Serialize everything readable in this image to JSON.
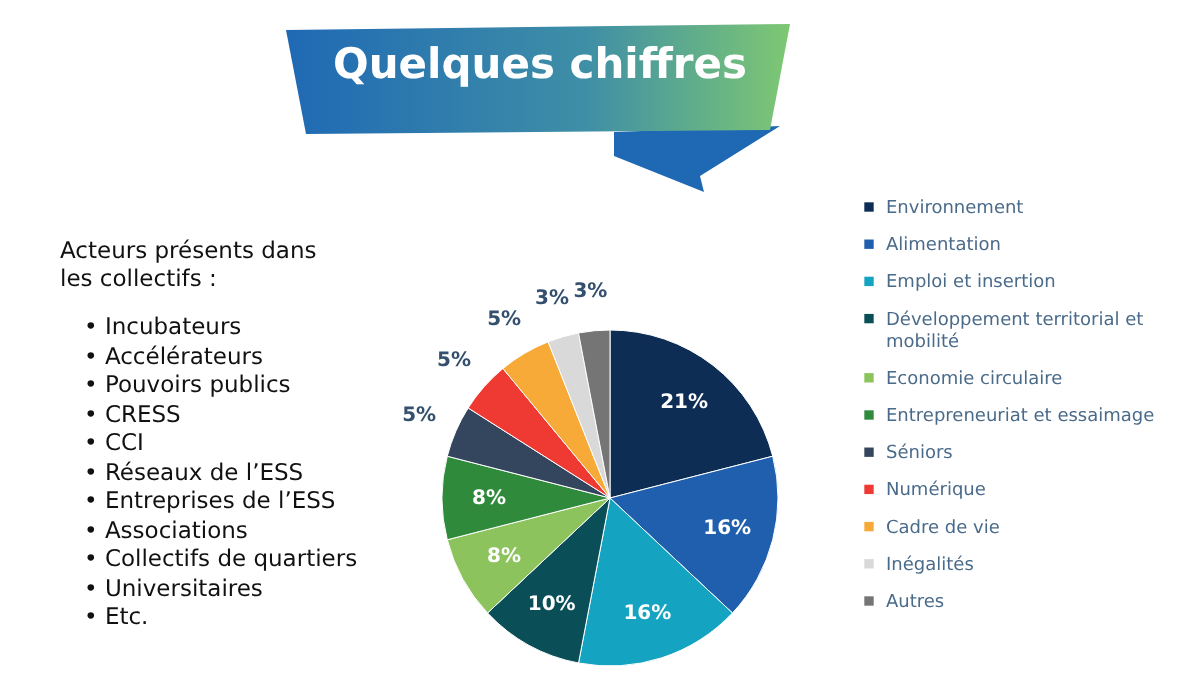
{
  "chart_data": {
    "type": "pie",
    "title": "Quelques chiffres",
    "categories": [
      "Environnement",
      "Alimentation",
      "Emploi et insertion",
      "Développement territorial et mobilité",
      "Economie circulaire",
      "Entrepreneuriat et essaimage",
      "Séniors",
      "Numérique",
      "Cadre de vie",
      "Inégalités",
      "Autres"
    ],
    "values": [
      21,
      16,
      16,
      10,
      8,
      8,
      5,
      5,
      5,
      3,
      3
    ],
    "value_labels": [
      "21%",
      "16%",
      "16%",
      "10%",
      "8%",
      "8%",
      "5%",
      "5%",
      "5%",
      "3%",
      "3%"
    ],
    "colors": [
      "#0e2d55",
      "#1f5fae",
      "#14a3c0",
      "#0a4e58",
      "#8cc35c",
      "#2f8a3c",
      "#34465e",
      "#ef3a34",
      "#f8aa38",
      "#d9d9d9",
      "#757575"
    ],
    "legend": "right",
    "annotations": [
      "Acteurs présents dans les collectifs :",
      "•  Incubateurs",
      "•  Accélérateurs",
      "•  Pouvoirs publics",
      "•  CRESS",
      "•  CCI",
      "•  Réseaux de l’ESS",
      "•  Entreprises de l’ESS",
      "•  Associations",
      "•  Collectifs de quartiers",
      "•  Universitaires",
      "•  Etc."
    ]
  }
}
